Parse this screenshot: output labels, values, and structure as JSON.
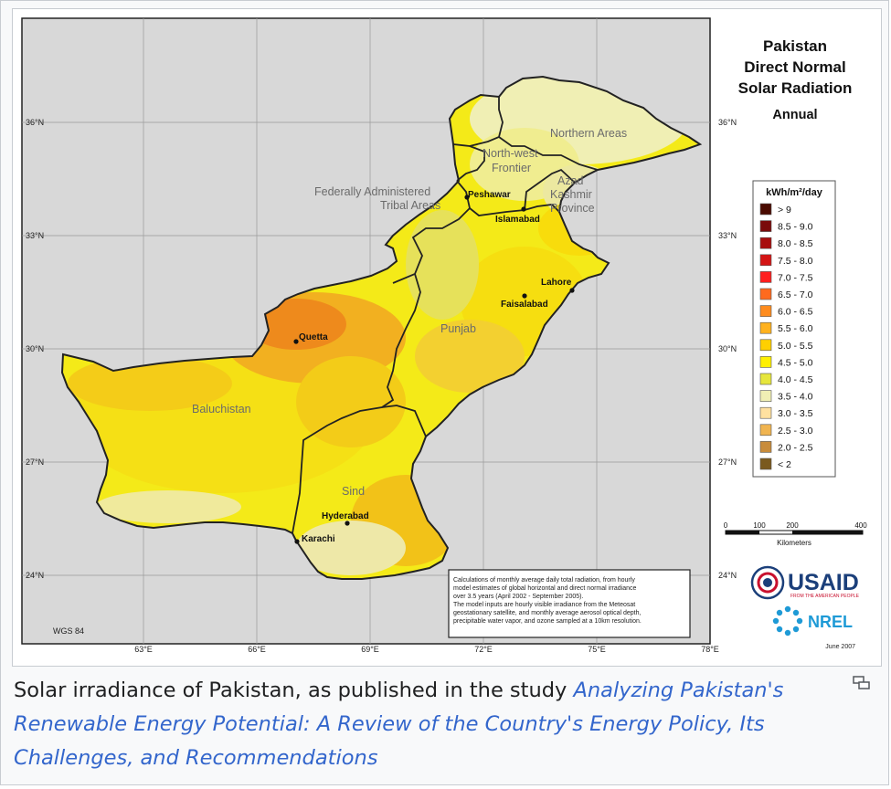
{
  "map": {
    "title": [
      "Pakistan",
      "Direct Normal",
      "Solar Radiation"
    ],
    "subtitle": "Annual",
    "legend_title": "kWh/m²/day",
    "legend": [
      {
        "label": "> 9",
        "color": "#4a0a00"
      },
      {
        "label": "8.5 - 9.0",
        "color": "#7a0a0a"
      },
      {
        "label": "8.0 - 8.5",
        "color": "#a80c0c"
      },
      {
        "label": "7.5 - 8.0",
        "color": "#d41414"
      },
      {
        "label": "7.0 - 7.5",
        "color": "#ff1e1e"
      },
      {
        "label": "6.5 - 7.0",
        "color": "#ff6a1e"
      },
      {
        "label": "6.0 - 6.5",
        "color": "#ff8c1e"
      },
      {
        "label": "5.5 - 6.0",
        "color": "#ffb21e"
      },
      {
        "label": "5.0 - 5.5",
        "color": "#ffd000"
      },
      {
        "label": "4.5 - 5.0",
        "color": "#fff000"
      },
      {
        "label": "4.0 - 4.5",
        "color": "#e6e63c"
      },
      {
        "label": "3.5 - 4.0",
        "color": "#f0efb4"
      },
      {
        "label": "3.0 - 3.5",
        "color": "#ffe1a0"
      },
      {
        "label": "2.5 - 3.0",
        "color": "#f0b450"
      },
      {
        "label": "2.0 - 2.5",
        "color": "#c88c3c"
      },
      {
        "label": "< 2",
        "color": "#7a5a1e"
      }
    ],
    "lat_labels": [
      "36°N",
      "33°N",
      "30°N",
      "27°N",
      "24°N"
    ],
    "lon_labels": [
      "63°E",
      "66°E",
      "69°E",
      "72°E",
      "75°E",
      "78°E"
    ],
    "regions": [
      "Northern Areas",
      "North-west",
      "Frontier",
      "Azad",
      "Kashmir",
      "Province",
      "Federally Administered",
      "Tribal Areas",
      "Punjab",
      "Baluchistan",
      "Sind"
    ],
    "cities": [
      "Peshawar",
      "Islamabad",
      "Lahore",
      "Faisalabad",
      "Quetta",
      "Hyderabad",
      "Karachi"
    ],
    "scale_ticks": [
      "0",
      "100",
      "200",
      "400"
    ],
    "scale_unit": "Kilometers",
    "projection": "WGS 84",
    "note": [
      "Calculations of monthly average daily total radiation, from hourly",
      "model estimates of global horizontal and direct normal irradiance",
      "over 3.5 years (April 2002 - September 2005).",
      "The model inputs are hourly visible irradiance from the Meteosat",
      "geostationary satellite, and monthly average aerosol optical depth,",
      "precipitable water vapor, and ozone sampled at a 10km resolution."
    ],
    "logo_usaid": "USAID",
    "logo_usaid_tagline": "FROM THE AMERICAN PEOPLE",
    "logo_nrel": "NREL",
    "date": "June 2007"
  },
  "caption": {
    "text": "Solar irradiance of Pakistan, as published in the study ",
    "link": "Analyzing Pakistan's Renewable Energy Potential: A Review of the Country's Energy Policy, Its Challenges, and Recommendations"
  },
  "icons": {
    "enlarge": "enlarge-icon"
  }
}
